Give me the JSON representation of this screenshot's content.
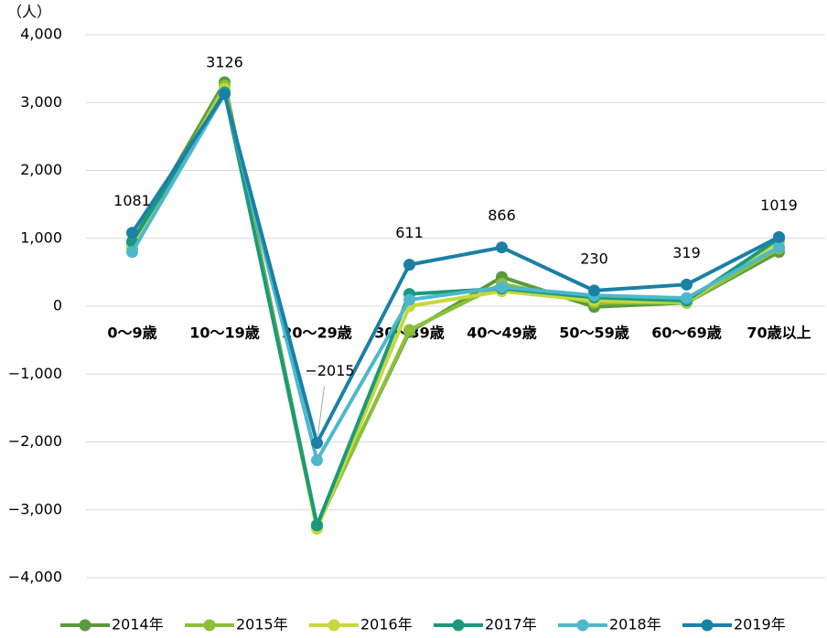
{
  "chart_data": {
    "type": "line",
    "y_label": "（人）",
    "categories": [
      "0～9歳",
      "10～19歳",
      "20～29歳",
      "30～39歳",
      "40～49歳",
      "50～59歳",
      "60～69歳",
      "70歳以上"
    ],
    "series": [
      {
        "name": "2014年",
        "color": "#5b9a3c",
        "values": [
          950,
          3300,
          -3220,
          -380,
          430,
          -10,
          50,
          800
        ]
      },
      {
        "name": "2015年",
        "color": "#8cbf3a",
        "values": [
          850,
          3250,
          -3250,
          -350,
          330,
          50,
          50,
          850
        ]
      },
      {
        "name": "2016年",
        "color": "#c5d83c",
        "values": [
          900,
          3200,
          -3280,
          0,
          220,
          80,
          60,
          950
        ]
      },
      {
        "name": "2017年",
        "color": "#1a9a7c",
        "values": [
          950,
          3150,
          -3230,
          180,
          260,
          130,
          80,
          1000
        ]
      },
      {
        "name": "2018年",
        "color": "#4db8cc",
        "values": [
          800,
          3130,
          -2270,
          95,
          280,
          160,
          120,
          870
        ]
      },
      {
        "name": "2019年",
        "color": "#1a80a6",
        "values": [
          1081,
          3126,
          -2015,
          611,
          866,
          230,
          319,
          1019
        ],
        "value_labels": [
          "1081",
          "3126",
          "−2015",
          "611",
          "866",
          "230",
          "319",
          "1019"
        ]
      }
    ],
    "ylim": [
      -4000,
      4000
    ],
    "yticks": [
      {
        "value": -4000,
        "label": "−4,000"
      },
      {
        "value": -3000,
        "label": "−3,000"
      },
      {
        "value": -2000,
        "label": "−2,000"
      },
      {
        "value": -1000,
        "label": "−1,000"
      },
      0,
      {
        "value": 1000,
        "label": "1,000"
      },
      {
        "value": 2000,
        "label": "2,000"
      },
      {
        "value": 3000,
        "label": "3,000"
      },
      {
        "value": 4000,
        "label": "4,000"
      }
    ],
    "grid": true
  }
}
